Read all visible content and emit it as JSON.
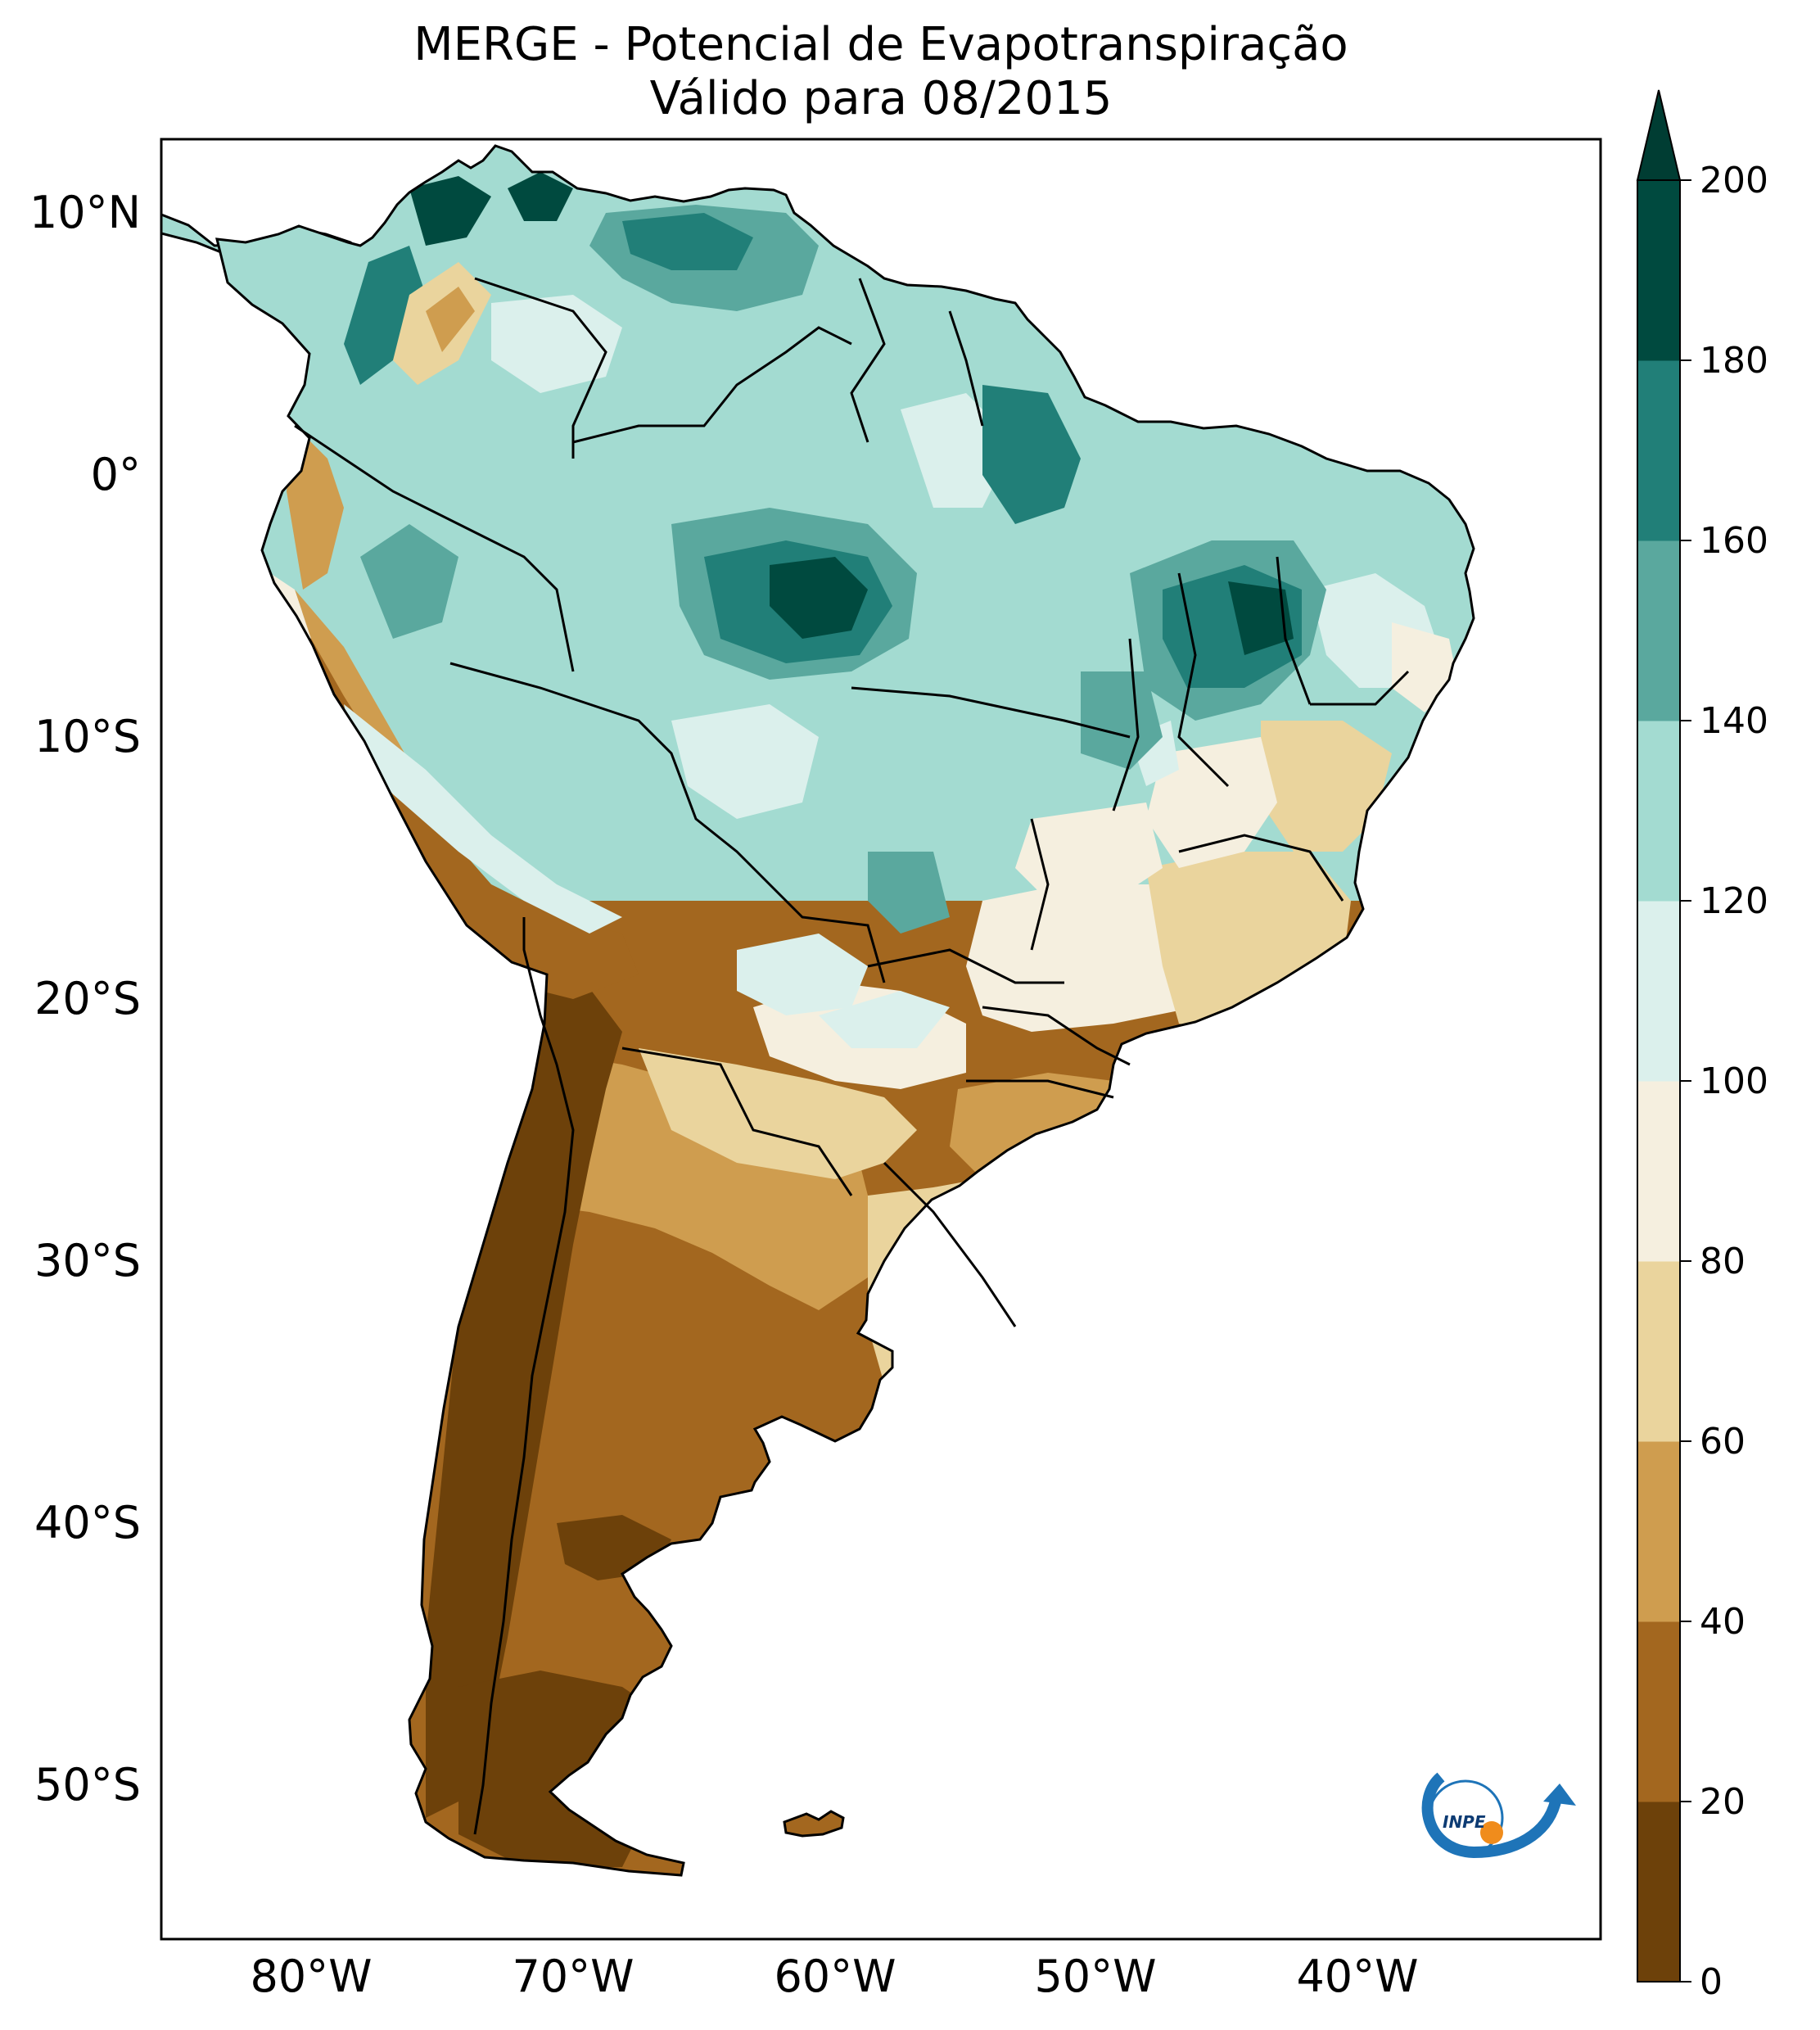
{
  "title": {
    "line1": "MERGE - Potencial de Evapotranspiração",
    "line2": "Válido para 08/2015"
  },
  "map": {
    "lat_labels": [
      "10°N",
      "0°",
      "10°S",
      "20°S",
      "30°S",
      "40°S",
      "50°S"
    ],
    "lon_labels": [
      "80°W",
      "70°W",
      "60°W",
      "50°W",
      "40°W"
    ]
  },
  "colorbar": {
    "ticks": [
      "0",
      "20",
      "40",
      "60",
      "80",
      "100",
      "120",
      "140",
      "160",
      "180",
      "200"
    ],
    "colors": [
      "#6d410a",
      "#a3671f",
      "#cf9d4f",
      "#ead49d",
      "#f5efdf",
      "#dbf0ec",
      "#a3dbd1",
      "#5aa89e",
      "#217f78",
      "#004a3f"
    ],
    "extend_color": "#003d33"
  },
  "colors": {
    "dark_brown": "#6d410a",
    "brown": "#a3671f",
    "tan": "#cf9d4f",
    "light_tan": "#ead49d",
    "cream": "#f5efdf",
    "pale_teal": "#dbf0ec",
    "light_teal": "#a3dbd1",
    "teal": "#5aa89e",
    "dark_teal": "#217f78",
    "darkest_teal": "#004a3f"
  },
  "logo": {
    "text": "INPE"
  }
}
